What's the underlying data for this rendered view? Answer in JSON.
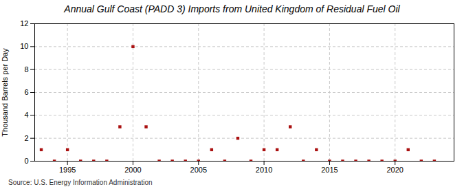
{
  "chart_data": {
    "type": "scatter",
    "title": "Annual Gulf Coast (PADD 3) Imports from United Kingdom of Residual Fuel Oil",
    "ylabel": "Thousand Barrels per Day",
    "source": "Source: U.S. Energy Information Administration",
    "x": [
      1993,
      1994,
      1995,
      1996,
      1997,
      1998,
      1999,
      2000,
      2001,
      2002,
      2003,
      2004,
      2005,
      2006,
      2007,
      2008,
      2009,
      2010,
      2011,
      2012,
      2013,
      2014,
      2015,
      2016,
      2017,
      2018,
      2019,
      2020,
      2021,
      2022,
      2023
    ],
    "values": [
      1,
      0,
      1,
      0,
      0,
      0,
      3,
      10,
      3,
      0,
      0,
      0,
      0,
      1,
      0,
      2,
      0,
      1,
      1,
      3,
      0,
      1,
      0,
      0,
      0,
      0,
      0,
      0,
      1,
      0,
      0
    ],
    "color": "#aa1111",
    "marker": "square",
    "xlim": [
      1992.5,
      2024.5
    ],
    "xticks": [
      1995,
      2000,
      2005,
      2010,
      2015,
      2020
    ],
    "ylim": [
      0,
      12
    ],
    "yticks": [
      0,
      2,
      4,
      6,
      8,
      10,
      12
    ],
    "grid": true
  }
}
